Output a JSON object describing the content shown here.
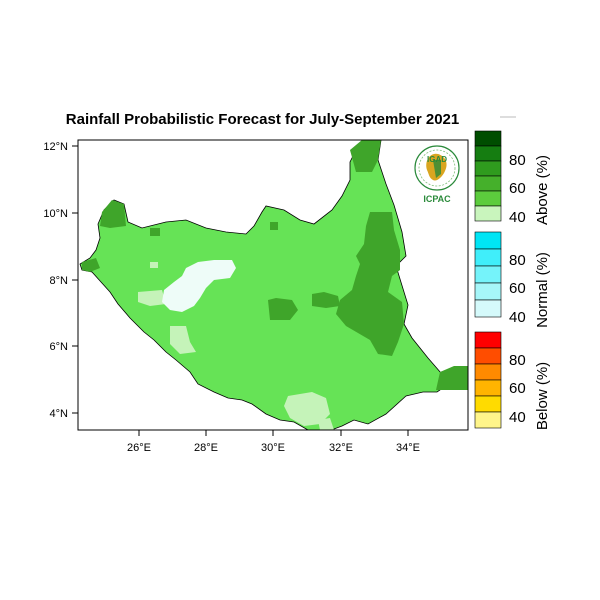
{
  "chart_data": {
    "type": "map",
    "title": "Rainfall Probabilistic Forecast for July-September 2021",
    "region": "South Sudan",
    "x_ticks": [
      "26°E",
      "28°E",
      "30°E",
      "32°E",
      "34°E"
    ],
    "x_values": [
      26,
      28,
      30,
      32,
      34
    ],
    "y_ticks": [
      "12°N",
      "10°N",
      "8°N",
      "6°N",
      "4°N"
    ],
    "y_values": [
      12,
      10,
      8,
      6,
      4
    ],
    "xlim": [
      24,
      36
    ],
    "ylim": [
      3.5,
      12.2
    ],
    "legend": {
      "placement": "right",
      "groups": [
        {
          "name": "Above (%)",
          "ticks": [
            "80",
            "60",
            "40"
          ],
          "colors": [
            "#004d00",
            "#157d11",
            "#2f9b1e",
            "#45b02b",
            "#5ccc3d",
            "#c9f5bd"
          ]
        },
        {
          "name": "Normal (%)",
          "ticks": [
            "80",
            "60",
            "40"
          ],
          "colors": [
            "#00e5f5",
            "#40eefa",
            "#75f3fa",
            "#a6f6f9",
            "#d5fafb"
          ]
        },
        {
          "name": "Below (%)",
          "ticks": [
            "80",
            "60",
            "40"
          ],
          "colors": [
            "#ff0000",
            "#ff4d00",
            "#ff8a00",
            "#ffb400",
            "#ffdb00",
            "#fff58a"
          ]
        }
      ]
    },
    "logo": {
      "top": "IGAD",
      "bottom": "ICPAC"
    }
  }
}
